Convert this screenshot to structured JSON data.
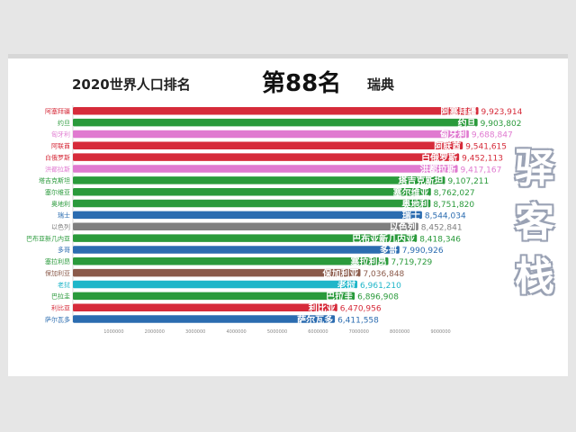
{
  "header": {
    "title": "2020世界人口排名",
    "rank": "第88名",
    "country": "瑞典"
  },
  "watermark": [
    "驿",
    "客",
    "栈"
  ],
  "chart_data": {
    "type": "bar",
    "orientation": "horizontal",
    "title": "2020世界人口排名",
    "categories": [
      "阿塞拜疆",
      "约旦",
      "匈牙利",
      "阿联酋",
      "白俄罗斯",
      "洪都拉斯",
      "塔吉克斯坦",
      "塞尔维亚",
      "奥地利",
      "瑞士",
      "以色列",
      "巴布亚新几内亚",
      "多哥",
      "塞拉利昂",
      "保加利亚",
      "老挝",
      "巴拉圭",
      "利比亚",
      "萨尔瓦多"
    ],
    "values": [
      9923914,
      9903802,
      9688847,
      9541615,
      9452113,
      9417167,
      9107211,
      8762027,
      8751820,
      8544034,
      8452841,
      8418346,
      7990926,
      7719729,
      7036848,
      6961210,
      6896908,
      6470956,
      6411558
    ],
    "value_labels": [
      "9,923,914",
      "9,903,802",
      "9,688,847",
      "9,541,615",
      "9,452,113",
      "9,417,167",
      "9,107,211",
      "8,762,027",
      "8,751,820",
      "8,544,034",
      "8,452,841",
      "8,418,346",
      "7,990,926",
      "7,719,729",
      "7,036,848",
      "6,961,210",
      "6,896,908",
      "6,470,956",
      "6,411,558"
    ],
    "colors": [
      "#d62b3a",
      "#2a9a3b",
      "#e07ad0",
      "#d62b3a",
      "#d62b3a",
      "#e07ad0",
      "#2a9a3b",
      "#2a9a3b",
      "#2a9a3b",
      "#2b6cb0",
      "#7f7f7f",
      "#2a9a3b",
      "#2b6cb0",
      "#2a9a3b",
      "#8b5a4a",
      "#1fb6c9",
      "#2a9a3b",
      "#d62b3a",
      "#2b6cb0"
    ],
    "x_ticks": [
      "1000000",
      "2000000",
      "3000000",
      "4000000",
      "5000000",
      "6000000",
      "7000000",
      "8000000",
      "9000000"
    ],
    "x_tick_values": [
      1000000,
      2000000,
      3000000,
      4000000,
      5000000,
      6000000,
      7000000,
      8000000,
      9000000
    ],
    "xlim": [
      0,
      10000000
    ]
  }
}
